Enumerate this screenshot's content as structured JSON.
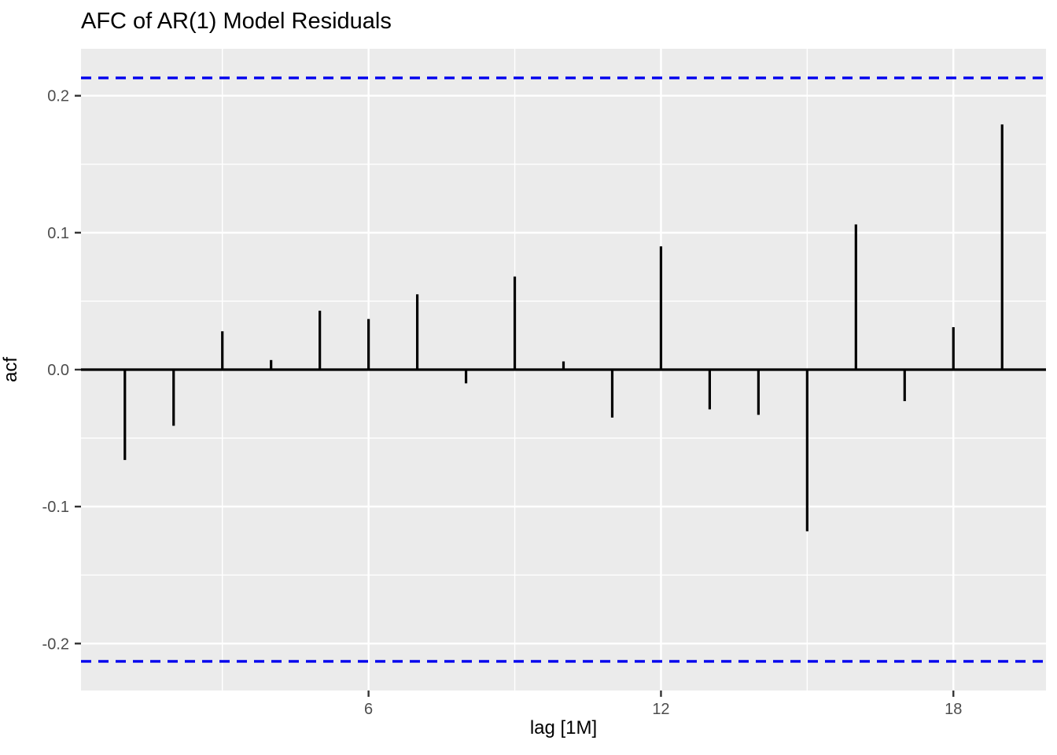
{
  "chart_data": {
    "type": "bar",
    "subtype": "acf-lollipop",
    "title": "AFC of AR(1) Model Residuals",
    "xlabel": "lag [1M]",
    "ylabel": "acf",
    "x": [
      1,
      2,
      3,
      4,
      5,
      6,
      7,
      8,
      9,
      10,
      11,
      12,
      13,
      14,
      15,
      16,
      17,
      18,
      19
    ],
    "values": [
      -0.066,
      -0.041,
      0.028,
      0.007,
      0.043,
      0.037,
      0.055,
      -0.01,
      0.068,
      0.006,
      -0.035,
      0.09,
      -0.029,
      -0.033,
      -0.118,
      0.106,
      -0.023,
      0.031,
      0.179
    ],
    "confidence_bounds": [
      -0.213,
      0.213
    ],
    "xlim": [
      0.1,
      19.9
    ],
    "ylim": [
      -0.2343,
      0.2343
    ],
    "x_tick_values": [
      6,
      12,
      18
    ],
    "x_tick_labels": [
      "6",
      "12",
      "18"
    ],
    "x_minor_gridlines": [
      3,
      9,
      15
    ],
    "y_tick_values": [
      0.2,
      0.1,
      0.0,
      -0.1,
      -0.2
    ],
    "y_tick_labels": [
      "0.2",
      "0.1",
      "0.0",
      "-0.1",
      "-0.2"
    ],
    "y_minor_gridlines": [
      0.15,
      0.05,
      -0.05,
      -0.15
    ],
    "grid": true,
    "legend_position": "none",
    "zero_line": 0.0,
    "style": {
      "panel_bg": "#EBEBEB",
      "outer_bg": "#FFFFFF",
      "grid_color": "#FFFFFF",
      "bar_color": "#000000",
      "zero_line_color": "#000000",
      "ci_line_color": "#0000EE",
      "tick_mark_color": "#333333",
      "tick_label_color": "#4D4D4D",
      "title_color": "#000000"
    }
  }
}
